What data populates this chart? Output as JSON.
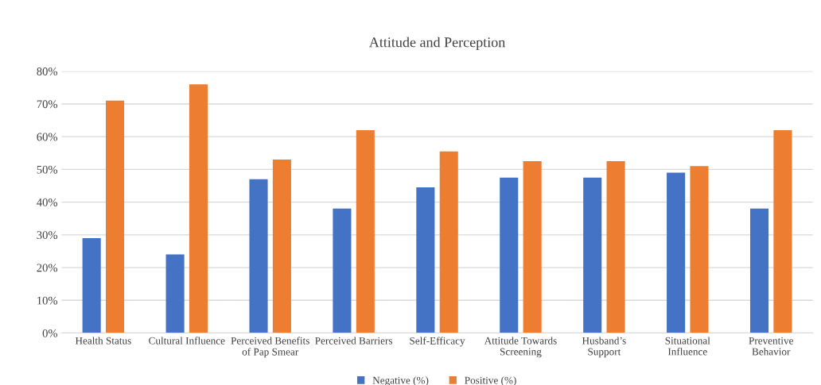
{
  "chart_data": {
    "type": "bar",
    "title": "Attitude and Perception",
    "categories": [
      "Health Status",
      "Cultural Influence",
      "Perceived Benefits\nof Pap Smear",
      "Perceived Barriers",
      "Self-Efficacy",
      "Attitude Towards\nScreening",
      "Husband’s\nSupport",
      "Situational\nInfluence",
      "Preventive\nBehavior"
    ],
    "series": [
      {
        "name": "Negative (%)",
        "color": "#4472c4",
        "values": [
          29,
          24,
          47,
          38,
          44.5,
          47.5,
          47.5,
          49,
          38
        ]
      },
      {
        "name": "Positive (%)",
        "color": "#ed7d31",
        "values": [
          71,
          76,
          53,
          62,
          55.5,
          52.5,
          52.5,
          51,
          62
        ]
      }
    ],
    "ylim": [
      0,
      80
    ],
    "yticks": [
      {
        "value": 0,
        "label": "0%"
      },
      {
        "value": 10,
        "label": "10%"
      },
      {
        "value": 20,
        "label": "20%"
      },
      {
        "value": 30,
        "label": "30%"
      },
      {
        "value": 40,
        "label": "40%"
      },
      {
        "value": 50,
        "label": "50%"
      },
      {
        "value": 60,
        "label": "60%"
      },
      {
        "value": 70,
        "label": "70%"
      },
      {
        "value": 80,
        "label": "80%"
      }
    ],
    "grid": "y",
    "legend": "bottom"
  }
}
